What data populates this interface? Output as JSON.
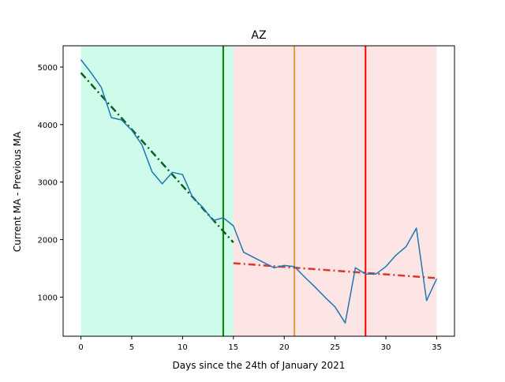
{
  "chart_data": {
    "type": "line",
    "title": "AZ",
    "xlabel": "Days since the 24th of January 2021",
    "ylabel": "Current MA - Previous MA",
    "xlim": [
      -1.75,
      36.75
    ],
    "ylim": [
      320,
      5370
    ],
    "xticks": [
      0,
      5,
      10,
      15,
      20,
      25,
      30,
      35
    ],
    "yticks": [
      1000,
      2000,
      3000,
      4000,
      5000
    ],
    "grid": false,
    "series": [
      {
        "color": "#1f77b4",
        "x": [
          0,
          1,
          2,
          3,
          4,
          5,
          6,
          7,
          8,
          9,
          10,
          11,
          12,
          13,
          14,
          15,
          16,
          17,
          18,
          19,
          20,
          21,
          22,
          23,
          24,
          25,
          26,
          27,
          28,
          29,
          30,
          31,
          32,
          33,
          34,
          35
        ],
        "y": [
          5130,
          4900,
          4650,
          4120,
          4080,
          3900,
          3650,
          3180,
          2970,
          3170,
          3130,
          2730,
          2560,
          2330,
          2380,
          2240,
          1780,
          1690,
          1600,
          1510,
          1550,
          1530,
          1350,
          1180,
          1000,
          830,
          550,
          1510,
          1400,
          1400,
          1530,
          1730,
          1880,
          2200,
          940,
          1320
        ]
      }
    ],
    "trendlines": [
      {
        "color": "#0b5e22",
        "style": "dash-dot",
        "x": [
          0,
          15
        ],
        "y": [
          4900,
          1950
        ]
      },
      {
        "color": "#d9382a",
        "style": "dash-dot",
        "x": [
          15,
          35
        ],
        "y": [
          1590,
          1330
        ]
      }
    ],
    "regions": [
      {
        "x0": 0,
        "x1": 15,
        "color": "#cffcea"
      },
      {
        "x0": 15,
        "x1": 35,
        "color": "#fde5e5"
      }
    ],
    "vlines": [
      {
        "x": 14,
        "color": "#008000"
      },
      {
        "x": 21,
        "color": "#e69c3c"
      },
      {
        "x": 28,
        "color": "#ff0000"
      }
    ]
  }
}
